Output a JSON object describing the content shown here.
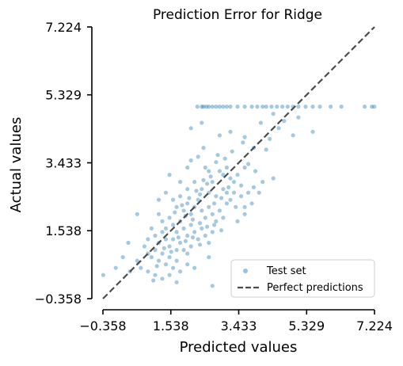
{
  "chart_data": {
    "type": "scatter",
    "title": "Prediction Error for Ridge",
    "xlabel": "Predicted values",
    "ylabel": "Actual values",
    "xlim": [
      -0.358,
      7.224
    ],
    "ylim": [
      -0.358,
      7.224
    ],
    "x_ticks": [
      "−0.358",
      "1.538",
      "3.433",
      "5.329",
      "7.224"
    ],
    "y_ticks": [
      "−0.358",
      "1.538",
      "3.433",
      "5.329",
      "7.224"
    ],
    "x_tick_values": [
      -0.358,
      1.538,
      3.433,
      5.329,
      7.224
    ],
    "y_tick_values": [
      -0.358,
      1.538,
      3.433,
      5.329,
      7.224
    ],
    "grid": false,
    "legend": {
      "placement": "lower-right",
      "entries": [
        {
          "label": "Test set",
          "marker": "dot"
        },
        {
          "label": "Perfect predictions",
          "marker": "dashed-line"
        }
      ]
    },
    "colors": {
      "points": "#1f77b4",
      "reference_line": "#4d4d4d"
    },
    "point_alpha": 0.4,
    "reference_line": {
      "x": [
        -0.358,
        7.224
      ],
      "y": [
        -0.358,
        7.224
      ],
      "style": "dashed"
    },
    "series": [
      {
        "name": "Test set",
        "points": [
          [
            2.28,
            5.0
          ],
          [
            2.4,
            5.0
          ],
          [
            2.45,
            5.0
          ],
          [
            2.53,
            5.0
          ],
          [
            2.6,
            5.0
          ],
          [
            2.7,
            5.0
          ],
          [
            2.8,
            5.0
          ],
          [
            2.9,
            5.0
          ],
          [
            3.0,
            5.0
          ],
          [
            3.1,
            5.0
          ],
          [
            3.2,
            5.0
          ],
          [
            3.4,
            5.0
          ],
          [
            3.6,
            5.0
          ],
          [
            3.8,
            5.0
          ],
          [
            3.95,
            5.0
          ],
          [
            4.1,
            5.0
          ],
          [
            4.2,
            5.0
          ],
          [
            4.35,
            5.0
          ],
          [
            4.5,
            5.0
          ],
          [
            4.65,
            5.0
          ],
          [
            4.8,
            5.0
          ],
          [
            4.95,
            5.0
          ],
          [
            5.1,
            5.0
          ],
          [
            5.3,
            5.0
          ],
          [
            5.5,
            5.0
          ],
          [
            5.7,
            5.0
          ],
          [
            6.0,
            5.0
          ],
          [
            6.3,
            5.0
          ],
          [
            6.95,
            5.0
          ],
          [
            7.15,
            5.0
          ],
          [
            7.22,
            5.0
          ],
          [
            2.1,
            4.4
          ],
          [
            2.4,
            4.55
          ],
          [
            2.9,
            4.2
          ],
          [
            3.2,
            4.3
          ],
          [
            3.6,
            4.15
          ],
          [
            4.05,
            4.55
          ],
          [
            4.4,
            4.8
          ],
          [
            4.55,
            4.4
          ],
          [
            4.95,
            4.2
          ],
          [
            5.5,
            4.3
          ],
          [
            3.55,
            4.0
          ],
          [
            3.85,
            3.85
          ],
          [
            4.2,
            3.8
          ],
          [
            2.0,
            3.3
          ],
          [
            2.1,
            3.5
          ],
          [
            2.3,
            3.6
          ],
          [
            2.5,
            3.3
          ],
          [
            2.6,
            3.2
          ],
          [
            2.8,
            3.45
          ],
          [
            2.9,
            3.2
          ],
          [
            3.0,
            3.1
          ],
          [
            3.1,
            3.3
          ],
          [
            3.2,
            3.0
          ],
          [
            3.3,
            2.9
          ],
          [
            3.4,
            3.1
          ],
          [
            3.5,
            2.8
          ],
          [
            3.6,
            3.3
          ],
          [
            3.7,
            3.4
          ],
          [
            1.5,
            3.1
          ],
          [
            1.8,
            2.9
          ],
          [
            2.0,
            2.7
          ],
          [
            2.2,
            2.9
          ],
          [
            2.4,
            2.7
          ],
          [
            2.6,
            2.6
          ],
          [
            2.7,
            2.9
          ],
          [
            2.8,
            2.5
          ],
          [
            3.0,
            2.7
          ],
          [
            3.1,
            2.6
          ],
          [
            3.2,
            2.4
          ],
          [
            3.3,
            2.6
          ],
          [
            3.5,
            2.5
          ],
          [
            3.6,
            2.2
          ],
          [
            1.4,
            2.6
          ],
          [
            1.6,
            2.4
          ],
          [
            1.7,
            2.2
          ],
          [
            1.8,
            2.5
          ],
          [
            1.9,
            2.1
          ],
          [
            2.0,
            2.3
          ],
          [
            2.1,
            2.0
          ],
          [
            2.2,
            2.2
          ],
          [
            2.3,
            2.4
          ],
          [
            2.4,
            2.1
          ],
          [
            2.5,
            1.9
          ],
          [
            2.6,
            2.2
          ],
          [
            2.7,
            2.0
          ],
          [
            2.8,
            1.8
          ],
          [
            2.9,
            2.1
          ],
          [
            3.0,
            1.9
          ],
          [
            3.1,
            2.3
          ],
          [
            1.2,
            2.0
          ],
          [
            1.3,
            1.8
          ],
          [
            1.4,
            1.6
          ],
          [
            1.5,
            1.9
          ],
          [
            1.6,
            1.7
          ],
          [
            1.7,
            1.5
          ],
          [
            1.8,
            1.8
          ],
          [
            1.9,
            1.6
          ],
          [
            2.0,
            1.4
          ],
          [
            2.1,
            1.7
          ],
          [
            2.2,
            1.5
          ],
          [
            2.3,
            1.3
          ],
          [
            2.4,
            1.6
          ],
          [
            2.5,
            1.4
          ],
          [
            2.6,
            1.2
          ],
          [
            2.7,
            1.5
          ],
          [
            1.0,
            1.6
          ],
          [
            1.1,
            1.4
          ],
          [
            1.2,
            1.2
          ],
          [
            1.3,
            1.5
          ],
          [
            1.4,
            1.3
          ],
          [
            1.5,
            1.1
          ],
          [
            1.6,
            1.3
          ],
          [
            1.7,
            1.0
          ],
          [
            1.8,
            1.2
          ],
          [
            1.9,
            1.0
          ],
          [
            2.0,
            0.9
          ],
          [
            2.1,
            1.1
          ],
          [
            0.8,
            1.1
          ],
          [
            0.9,
            0.9
          ],
          [
            1.0,
            0.8
          ],
          [
            1.1,
            1.0
          ],
          [
            1.2,
            0.7
          ],
          [
            1.3,
            0.9
          ],
          [
            1.4,
            0.6
          ],
          [
            1.5,
            0.8
          ],
          [
            1.6,
            0.5
          ],
          [
            1.7,
            0.7
          ],
          [
            1.8,
            0.4
          ],
          [
            2.0,
            0.6
          ],
          [
            0.6,
            0.7
          ],
          [
            0.7,
            0.5
          ],
          [
            0.9,
            0.4
          ],
          [
            1.1,
            0.3
          ],
          [
            1.3,
            0.2
          ],
          [
            1.5,
            0.3
          ],
          [
            1.7,
            0.1
          ],
          [
            2.2,
            0.5
          ],
          [
            2.6,
            0.8
          ],
          [
            0.0,
            0.5
          ],
          [
            0.2,
            0.8
          ],
          [
            0.35,
            1.2
          ],
          [
            -0.35,
            0.3
          ],
          [
            0.4,
            0.4
          ],
          [
            2.7,
            0.0
          ],
          [
            3.4,
            1.8
          ],
          [
            3.6,
            2.0
          ],
          [
            3.8,
            2.3
          ],
          [
            4.0,
            2.6
          ],
          [
            4.1,
            2.9
          ],
          [
            4.4,
            3.0
          ],
          [
            3.9,
            3.2
          ],
          [
            0.6,
            2.0
          ],
          [
            1.2,
            2.4
          ],
          [
            0.9,
            1.3
          ],
          [
            2.35,
            2.55
          ],
          [
            2.55,
            2.85
          ],
          [
            2.75,
            2.3
          ],
          [
            2.95,
            2.45
          ],
          [
            3.15,
            2.75
          ],
          [
            3.35,
            2.2
          ],
          [
            1.95,
            1.95
          ],
          [
            2.15,
            1.85
          ],
          [
            2.35,
            1.75
          ],
          [
            2.55,
            1.65
          ],
          [
            2.75,
            1.7
          ],
          [
            2.95,
            1.55
          ],
          [
            1.75,
            1.35
          ],
          [
            1.95,
            1.25
          ],
          [
            2.15,
            1.35
          ],
          [
            2.35,
            1.15
          ],
          [
            1.55,
            0.95
          ],
          [
            1.35,
            1.05
          ],
          [
            1.15,
            0.55
          ],
          [
            1.65,
            2.05
          ],
          [
            1.85,
            2.25
          ],
          [
            2.05,
            2.45
          ],
          [
            2.25,
            2.65
          ],
          [
            2.45,
            2.95
          ],
          [
            2.65,
            3.05
          ],
          [
            3.05,
            3.55
          ],
          [
            3.25,
            3.75
          ],
          [
            2.85,
            3.65
          ],
          [
            2.45,
            3.85
          ],
          [
            4.3,
            4.1
          ],
          [
            4.7,
            4.6
          ],
          [
            5.1,
            4.7
          ],
          [
            3.7,
            2.6
          ],
          [
            3.85,
            2.75
          ],
          [
            1.05,
            0.15
          ]
        ]
      }
    ]
  }
}
